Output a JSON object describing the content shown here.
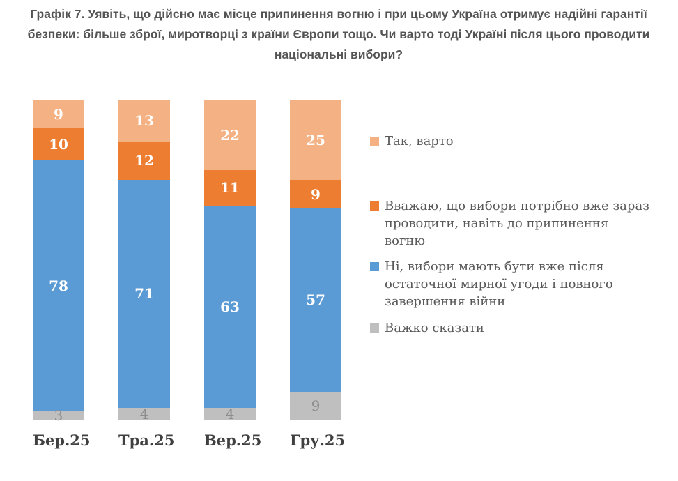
{
  "page": {
    "background": "#FFFFFF"
  },
  "title": "Графік 7. Уявіть, що дійсно має місце припинення вогню і при цьому Україна отримує надійні гарантії безпеки: більше зброї, миротворці з країни Європи тощо. Чи варто тоді Україні після цього проводити національні вибори?",
  "chart_data": {
    "type": "bar",
    "subtype": "stacked-column",
    "stacked": true,
    "title": "Графік 7. Уявіть, що дійсно має місце припинення вогню і при цьому Україна отримує надійні гарантії безпеки: більше зброї, миротворці з країни Європи тощо. Чи варто тоді Україні після цього проводити національні вибори?",
    "categories": [
      "Бер.25",
      "Тра.25",
      "Вер.25",
      "Гру.25"
    ],
    "series": [
      {
        "name": "Так, варто",
        "color": "#F4B183",
        "label_color": "#FFFFFF",
        "values": [
          9,
          13,
          22,
          25
        ]
      },
      {
        "name": "Вважаю, що вибори потрібно вже зараз проводити, навіть до припинення вогню",
        "color": "#ED7D31",
        "label_color": "#FFFFFF",
        "values": [
          10,
          12,
          11,
          9
        ]
      },
      {
        "name": "Ні, вибори мають бути вже після остаточної мирної угоди і повного завершення війни",
        "color": "#5B9BD5",
        "label_color": "#FFFFFF",
        "values": [
          78,
          71,
          63,
          57
        ]
      },
      {
        "name": "Важко сказати",
        "color": "#BFBFBF",
        "label_color": "#8C8C8C",
        "values": [
          3,
          4,
          4,
          9
        ]
      }
    ],
    "stack_order": "first-series-on-top",
    "value_labels": "inside-center",
    "ylim": [
      0,
      100
    ],
    "grid": false,
    "legend_position": "right",
    "colors": {
      "title_text": "#545454",
      "axis_label_text": "#404040",
      "legend_text": "#595959"
    }
  }
}
